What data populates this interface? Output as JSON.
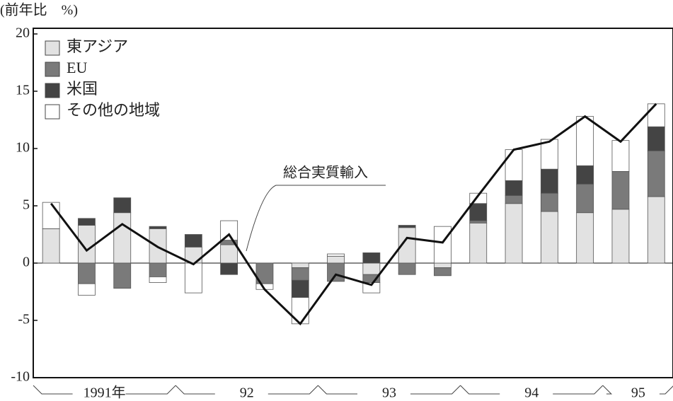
{
  "chart_data": {
    "type": "stacked_bar_line",
    "y_label": "(前年比　%)",
    "categories": [
      null,
      null,
      null,
      null,
      null,
      null,
      null,
      null,
      null,
      null,
      null,
      null,
      null,
      null,
      null,
      null,
      null,
      null
    ],
    "x_group_labels": [
      "1991年",
      "92",
      "93",
      "94",
      "95"
    ],
    "series": [
      {
        "name": "東アジア",
        "color": "#e2e2e2",
        "values": [
          3.0,
          3.3,
          4.4,
          3.0,
          1.4,
          1.6,
          0,
          -0.4,
          0.6,
          -1.0,
          3.1,
          -0.4,
          3.5,
          5.2,
          4.5,
          4.4,
          4.7,
          5.8
        ]
      },
      {
        "name": "EU",
        "color": "#7a7a7a",
        "values": [
          0,
          -1.8,
          -2.2,
          -1.2,
          0,
          0.4,
          -1.8,
          -1.1,
          -1.6,
          -0.7,
          -1.0,
          -0.7,
          0.2,
          0.7,
          1.6,
          2.5,
          3.3,
          4.0
        ]
      },
      {
        "name": "米国",
        "color": "#444444",
        "values": [
          0,
          0.6,
          1.3,
          0.2,
          1.1,
          -1.0,
          0,
          -1.5,
          0,
          0.9,
          0.2,
          0,
          1.5,
          1.3,
          2.1,
          1.6,
          0,
          2.1
        ]
      },
      {
        "name": "その他の地域",
        "color": "#ffffff",
        "values": [
          2.3,
          -1.0,
          0,
          -0.5,
          -2.6,
          1.7,
          -0.5,
          -2.3,
          0.2,
          -0.9,
          0,
          3.2,
          0.9,
          2.7,
          2.6,
          4.3,
          2.7,
          2.0
        ]
      }
    ],
    "line": {
      "name": "総合実質輸入",
      "color": "#111111",
      "values": [
        5.2,
        1.1,
        3.4,
        1.4,
        -0.1,
        2.5,
        -2.3,
        -5.3,
        -1.0,
        -1.9,
        2.2,
        1.8,
        5.9,
        9.9,
        10.6,
        12.8,
        10.6,
        13.9
      ]
    },
    "ylim": [
      -10,
      20
    ],
    "yticks": [
      -10,
      -5,
      0,
      5,
      10,
      15,
      20
    ]
  }
}
